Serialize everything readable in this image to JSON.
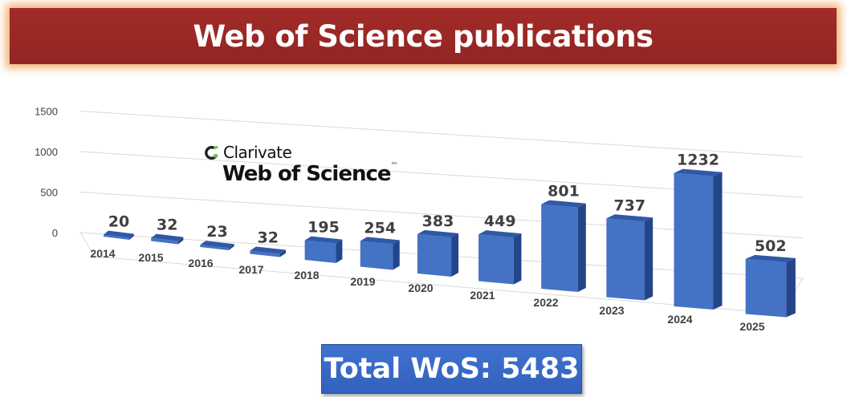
{
  "title": "Web of Science publications",
  "total": "Total WoS: 5483",
  "logo": {
    "brand": "Clarivate",
    "product": "Web of Science",
    "tm": "™"
  },
  "colors": {
    "banner": "#9e2a27",
    "bar_front": "#4472c4",
    "bar_top": "#2f58a6",
    "bar_side": "#23458a",
    "total_box": "#3a6bc7"
  },
  "chart_data": {
    "type": "bar",
    "title": "Web of Science publications",
    "categories": [
      "2014",
      "2015",
      "2016",
      "2017",
      "2018",
      "2019",
      "2020",
      "2021",
      "2022",
      "2023",
      "2024",
      "2025"
    ],
    "values": [
      20,
      32,
      23,
      32,
      195,
      254,
      383,
      449,
      801,
      737,
      1232,
      502
    ],
    "value_labels": [
      "20",
      "32",
      "23",
      "32",
      "195",
      "254",
      "383",
      "449",
      "801",
      "737",
      "1232",
      "502"
    ],
    "y_ticks": [
      "0",
      "500",
      "1000",
      "1500"
    ],
    "ylim": [
      0,
      1500
    ],
    "grid": true,
    "legend": "none",
    "style": "3d"
  }
}
